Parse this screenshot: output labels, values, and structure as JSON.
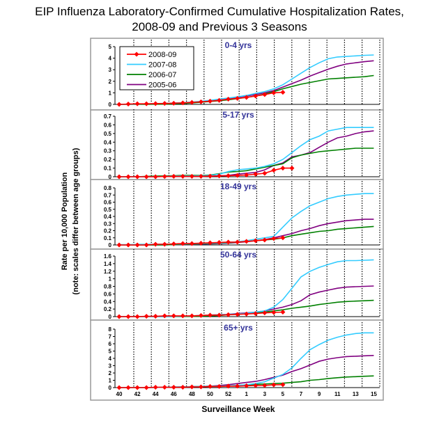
{
  "chart_data": {
    "type": "line",
    "title": [
      "EIP Influenza Laboratory-Confirmed Cumulative Hospitalization Rates,",
      "2008-09 and Previous 3 Seasons"
    ],
    "xlabel": "Surveillance Week",
    "ylabel": [
      "Rate per 10,000 Population",
      "(note: scales differ between age groups)"
    ],
    "x": [
      40,
      41,
      42,
      43,
      44,
      45,
      46,
      47,
      48,
      49,
      50,
      51,
      52,
      1,
      2,
      3,
      4,
      5,
      6,
      7,
      8,
      9,
      10,
      11,
      12,
      13,
      14,
      15,
      16
    ],
    "x_tick_labels": [
      "40",
      "42",
      "44",
      "46",
      "48",
      "50",
      "52",
      "1",
      "3",
      "5",
      "7",
      "9",
      "11",
      "13",
      "15"
    ],
    "grid": "vertical dotted",
    "legend": {
      "placement": "top-left of first panel",
      "entries": [
        "2008-09",
        "2007-08",
        "2006-07",
        "2005-06"
      ]
    },
    "colors": {
      "2008-09": "#ff0000",
      "2007-08": "#33ccff",
      "2006-07": "#008000",
      "2005-06": "#800080"
    },
    "panels": [
      {
        "title": "0-4 yrs",
        "ylim": [
          0,
          5
        ],
        "y_ticks": [
          "0",
          "1",
          "2",
          "3",
          "4",
          "5"
        ],
        "series": [
          {
            "name": "2008-09",
            "values": [
              0,
              0.03,
              0.05,
              0.05,
              0.07,
              0.08,
              0.1,
              0.13,
              0.17,
              0.22,
              0.28,
              0.35,
              0.45,
              0.52,
              0.6,
              0.72,
              0.85,
              1.0,
              1.05
            ]
          },
          {
            "name": "2007-08",
            "values": [
              0,
              0.02,
              0.03,
              0.05,
              0.07,
              0.09,
              0.12,
              0.15,
              0.2,
              0.27,
              0.35,
              0.45,
              0.55,
              0.65,
              0.78,
              0.95,
              1.1,
              1.35,
              1.7,
              2.2,
              2.7,
              3.2,
              3.6,
              3.95,
              4.1,
              4.15,
              4.2,
              4.25,
              4.28
            ]
          },
          {
            "name": "2006-07",
            "values": [
              0,
              0,
              0,
              0,
              0.01,
              0.02,
              0.05,
              0.08,
              0.12,
              0.18,
              0.25,
              0.32,
              0.4,
              0.5,
              0.6,
              0.72,
              0.9,
              1.1,
              1.35,
              1.55,
              1.75,
              1.9,
              2.05,
              2.2,
              2.25,
              2.3,
              2.35,
              2.4,
              2.5
            ]
          },
          {
            "name": "2005-06",
            "values": [
              0,
              0.01,
              0.02,
              0.03,
              0.05,
              0.07,
              0.1,
              0.13,
              0.18,
              0.24,
              0.3,
              0.4,
              0.5,
              0.6,
              0.72,
              0.85,
              1.0,
              1.2,
              1.5,
              1.8,
              2.1,
              2.45,
              2.75,
              3.05,
              3.3,
              3.5,
              3.6,
              3.7,
              3.78
            ]
          }
        ]
      },
      {
        "title": "5-17 yrs",
        "ylim": [
          0,
          0.7
        ],
        "y_ticks": [
          "0",
          "0.1",
          "0.2",
          "0.3",
          "0.4",
          "0.5",
          "0.6",
          "0.7"
        ],
        "series": [
          {
            "name": "2008-09",
            "values": [
              0,
              0,
              0,
              0,
              0,
              0.003,
              0.005,
              0.005,
              0.005,
              0.005,
              0.007,
              0.01,
              0.012,
              0.015,
              0.02,
              0.03,
              0.04,
              0.075,
              0.1,
              0.1
            ]
          },
          {
            "name": "2007-08",
            "values": [
              0,
              0,
              0,
              0,
              0,
              0.005,
              0.008,
              0.01,
              0.01,
              0.012,
              0.015,
              0.03,
              0.06,
              0.08,
              0.09,
              0.1,
              0.12,
              0.15,
              0.2,
              0.28,
              0.36,
              0.43,
              0.47,
              0.53,
              0.55,
              0.57,
              0.57,
              0.57,
              0.57
            ]
          },
          {
            "name": "2006-07",
            "values": [
              0,
              0,
              0,
              0.005,
              0.008,
              0.01,
              0.012,
              0.015,
              0.015,
              0.015,
              0.02,
              0.035,
              0.055,
              0.06,
              0.07,
              0.09,
              0.11,
              0.13,
              0.15,
              0.22,
              0.25,
              0.27,
              0.29,
              0.3,
              0.31,
              0.32,
              0.33,
              0.33,
              0.33
            ]
          },
          {
            "name": "2005-06",
            "values": [
              0,
              0,
              0,
              0,
              0,
              0.003,
              0.005,
              0.005,
              0.005,
              0.005,
              0.007,
              0.01,
              0.015,
              0.03,
              0.04,
              0.05,
              0.08,
              0.13,
              0.16,
              0.23,
              0.25,
              0.28,
              0.34,
              0.4,
              0.45,
              0.47,
              0.5,
              0.52,
              0.53
            ]
          }
        ]
      },
      {
        "title": "18-49 yrs",
        "ylim": [
          0,
          0.8
        ],
        "y_ticks": [
          "0",
          "0.1",
          "0.2",
          "0.3",
          "0.4",
          "0.5",
          "0.6",
          "0.7",
          "0.8"
        ],
        "series": [
          {
            "name": "2008-09",
            "values": [
              0,
              0,
              0,
              0,
              0.01,
              0.01,
              0.015,
              0.02,
              0.02,
              0.025,
              0.03,
              0.035,
              0.04,
              0.04,
              0.05,
              0.06,
              0.07,
              0.09,
              0.1
            ]
          },
          {
            "name": "2007-08",
            "values": [
              0.005,
              0.005,
              0.008,
              0.01,
              0.01,
              0.012,
              0.015,
              0.015,
              0.02,
              0.02,
              0.025,
              0.03,
              0.035,
              0.045,
              0.06,
              0.08,
              0.1,
              0.12,
              0.25,
              0.38,
              0.47,
              0.55,
              0.6,
              0.65,
              0.68,
              0.7,
              0.71,
              0.72,
              0.72
            ]
          },
          {
            "name": "2006-07",
            "values": [
              0,
              0,
              0,
              0,
              0,
              0,
              0.005,
              0.01,
              0.01,
              0.015,
              0.02,
              0.025,
              0.03,
              0.04,
              0.05,
              0.06,
              0.07,
              0.08,
              0.1,
              0.13,
              0.15,
              0.17,
              0.19,
              0.2,
              0.22,
              0.23,
              0.24,
              0.25,
              0.26
            ]
          },
          {
            "name": "2005-06",
            "values": [
              0,
              0,
              0,
              0,
              0,
              0,
              0.005,
              0.005,
              0.005,
              0.01,
              0.015,
              0.02,
              0.025,
              0.035,
              0.045,
              0.06,
              0.075,
              0.1,
              0.13,
              0.16,
              0.2,
              0.23,
              0.27,
              0.3,
              0.32,
              0.34,
              0.35,
              0.36,
              0.36
            ]
          }
        ]
      },
      {
        "title": "50-64 yrs",
        "ylim": [
          0,
          1.6
        ],
        "y_ticks": [
          "0",
          "0.2",
          "0.4",
          "0.6",
          "0.8",
          "1",
          "1.2",
          "1.4",
          "1.6"
        ],
        "series": [
          {
            "name": "2008-09",
            "values": [
              0,
              0,
              0,
              0.01,
              0.01,
              0.02,
              0.02,
              0.02,
              0.02,
              0.03,
              0.04,
              0.04,
              0.05,
              0.06,
              0.07,
              0.08,
              0.1,
              0.11,
              0.12
            ]
          },
          {
            "name": "2007-08",
            "values": [
              0,
              0,
              0,
              0,
              0,
              0,
              0.005,
              0.01,
              0.02,
              0.03,
              0.04,
              0.05,
              0.06,
              0.07,
              0.09,
              0.12,
              0.15,
              0.25,
              0.45,
              0.75,
              1.05,
              1.2,
              1.3,
              1.38,
              1.45,
              1.48,
              1.48,
              1.49,
              1.5
            ]
          },
          {
            "name": "2006-07",
            "values": [
              0,
              0,
              0,
              0,
              0,
              0,
              0,
              0,
              0.005,
              0.01,
              0.02,
              0.03,
              0.05,
              0.06,
              0.08,
              0.1,
              0.12,
              0.15,
              0.18,
              0.22,
              0.25,
              0.28,
              0.32,
              0.35,
              0.38,
              0.4,
              0.41,
              0.42,
              0.43
            ]
          },
          {
            "name": "2005-06",
            "values": [
              0,
              0,
              0,
              0,
              0,
              0,
              0.005,
              0.01,
              0.02,
              0.03,
              0.04,
              0.05,
              0.06,
              0.08,
              0.1,
              0.12,
              0.15,
              0.2,
              0.25,
              0.32,
              0.42,
              0.58,
              0.65,
              0.7,
              0.75,
              0.78,
              0.79,
              0.8,
              0.81
            ]
          }
        ]
      },
      {
        "title": "65+ yrs",
        "ylim": [
          0,
          8
        ],
        "y_ticks": [
          "0",
          "1",
          "2",
          "3",
          "4",
          "5",
          "6",
          "7",
          "8"
        ],
        "series": [
          {
            "name": "2008-09",
            "values": [
              0,
              0,
              0,
              0,
              0.05,
              0.05,
              0.05,
              0.05,
              0.1,
              0.1,
              0.15,
              0.15,
              0.2,
              0.2,
              0.25,
              0.28,
              0.3,
              0.38,
              0.4
            ]
          },
          {
            "name": "2007-08",
            "values": [
              0,
              0,
              0,
              0,
              0.02,
              0.05,
              0.08,
              0.1,
              0.12,
              0.15,
              0.18,
              0.2,
              0.25,
              0.3,
              0.4,
              0.55,
              0.8,
              1.3,
              1.8,
              2.7,
              4.0,
              5.2,
              5.9,
              6.5,
              6.9,
              7.2,
              7.4,
              7.5,
              7.5
            ]
          },
          {
            "name": "2006-07",
            "values": [
              0,
              0,
              0,
              0,
              0.02,
              0.05,
              0.08,
              0.1,
              0.12,
              0.15,
              0.18,
              0.2,
              0.25,
              0.3,
              0.38,
              0.45,
              0.5,
              0.55,
              0.6,
              0.7,
              0.8,
              1.0,
              1.1,
              1.25,
              1.35,
              1.45,
              1.5,
              1.55,
              1.6
            ]
          },
          {
            "name": "2005-06",
            "values": [
              0,
              0,
              0,
              0,
              0.02,
              0.05,
              0.08,
              0.1,
              0.12,
              0.15,
              0.2,
              0.28,
              0.4,
              0.55,
              0.7,
              0.85,
              1.1,
              1.4,
              1.7,
              2.2,
              2.6,
              3.1,
              3.6,
              3.9,
              4.1,
              4.25,
              4.3,
              4.35,
              4.4
            ]
          }
        ]
      }
    ]
  }
}
